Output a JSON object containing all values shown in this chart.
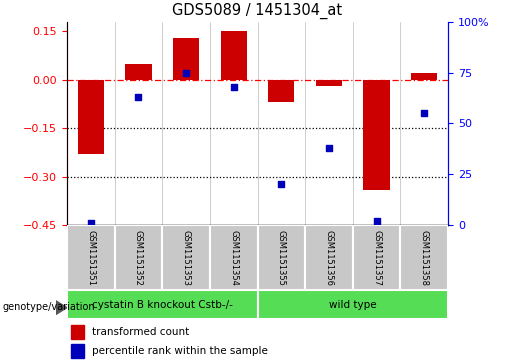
{
  "title": "GDS5089 / 1451304_at",
  "samples": [
    "GSM1151351",
    "GSM1151352",
    "GSM1151353",
    "GSM1151354",
    "GSM1151355",
    "GSM1151356",
    "GSM1151357",
    "GSM1151358"
  ],
  "transformed_count": [
    -0.23,
    0.05,
    0.13,
    0.15,
    -0.07,
    -0.02,
    -0.34,
    0.02
  ],
  "percentile_rank": [
    1,
    63,
    75,
    68,
    20,
    38,
    2,
    55
  ],
  "group_labels": [
    "cystatin B knockout Cstb-/-",
    "wild type"
  ],
  "bar_color": "#cc0000",
  "dot_color": "#0000bb",
  "ylim_left": [
    -0.45,
    0.18
  ],
  "ylim_right": [
    0,
    100
  ],
  "yticks_left": [
    0.15,
    0.0,
    -0.15,
    -0.3,
    -0.45
  ],
  "yticks_right": [
    100,
    75,
    50,
    25,
    0
  ],
  "dotted_lines": [
    -0.15,
    -0.3
  ],
  "legend_items": [
    "transformed count",
    "percentile rank within the sample"
  ],
  "bar_width": 0.55,
  "group1_color": "#66dd55",
  "group2_color": "#66dd55",
  "label_bg": "#c8c8c8"
}
